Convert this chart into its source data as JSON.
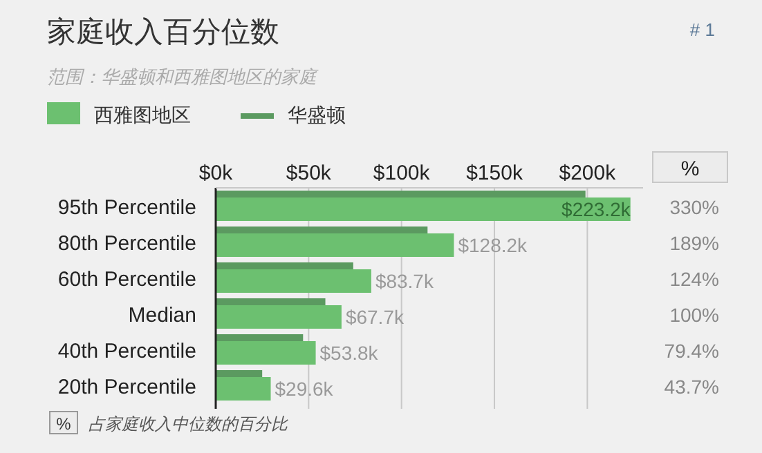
{
  "chart_data": {
    "type": "bar",
    "orientation": "horizontal",
    "title": "家庭收入百分位数",
    "subtitle": "范围：华盛顿和西雅图地区的家庭",
    "categories": [
      "95th Percentile",
      "80th Percentile",
      "60th Percentile",
      "Median",
      "40th Percentile",
      "20th Percentile"
    ],
    "series": [
      {
        "name": "西雅图地区",
        "color": "#6cc070",
        "values": [
          223.2,
          128.2,
          83.7,
          67.7,
          53.8,
          29.6
        ],
        "value_labels": [
          "$223.2k",
          "$128.2k",
          "$83.7k",
          "$67.7k",
          "$53.8k",
          "$29.6k"
        ]
      },
      {
        "name": "华盛顿",
        "color": "#5b9a60",
        "values": [
          199,
          114,
          74,
          59,
          47,
          25
        ]
      }
    ],
    "xlim": [
      0,
      230
    ],
    "xticks": [
      {
        "value": 0,
        "label": "$0k"
      },
      {
        "value": 50,
        "label": "$50k"
      },
      {
        "value": 100,
        "label": "$100k"
      },
      {
        "value": 150,
        "label": "$150k"
      },
      {
        "value": 200,
        "label": "$200k"
      }
    ],
    "grid": "x",
    "legend": "top left",
    "annotations": [
      "# 1",
      "%",
      "330%",
      "189%",
      "124%",
      "100%",
      "79.4%",
      "43.7%",
      "% 占家庭收入中位数的百分比"
    ]
  }
}
